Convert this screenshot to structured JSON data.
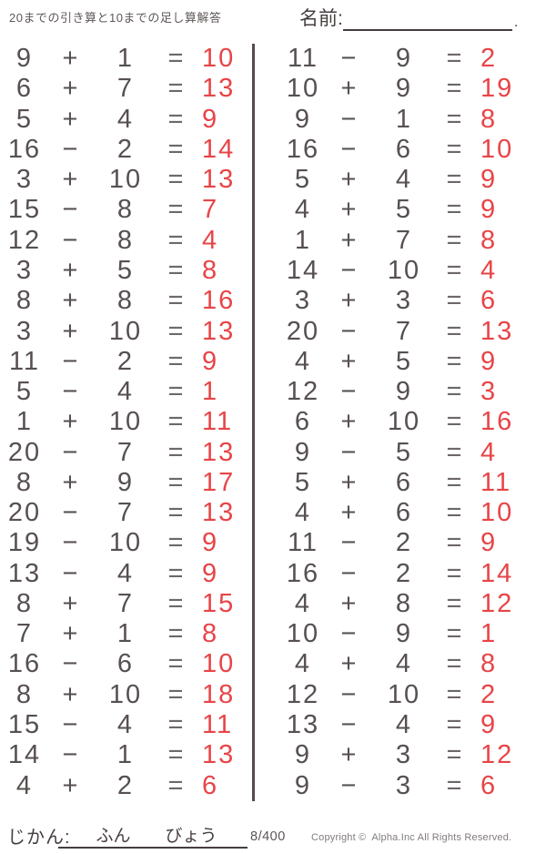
{
  "header": {
    "title": "20までの引き算と10までの足し算解答",
    "name_label": "名前:",
    "name_line_period": "."
  },
  "problems": {
    "equals_symbol": "=",
    "left": [
      {
        "a": "9",
        "op": "+",
        "b": "1",
        "ans": "10"
      },
      {
        "a": "6",
        "op": "+",
        "b": "7",
        "ans": "13"
      },
      {
        "a": "5",
        "op": "+",
        "b": "4",
        "ans": "9"
      },
      {
        "a": "16",
        "op": "−",
        "b": "2",
        "ans": "14"
      },
      {
        "a": "3",
        "op": "+",
        "b": "10",
        "ans": "13"
      },
      {
        "a": "15",
        "op": "−",
        "b": "8",
        "ans": "7"
      },
      {
        "a": "12",
        "op": "−",
        "b": "8",
        "ans": "4"
      },
      {
        "a": "3",
        "op": "+",
        "b": "5",
        "ans": "8"
      },
      {
        "a": "8",
        "op": "+",
        "b": "8",
        "ans": "16"
      },
      {
        "a": "3",
        "op": "+",
        "b": "10",
        "ans": "13"
      },
      {
        "a": "11",
        "op": "−",
        "b": "2",
        "ans": "9"
      },
      {
        "a": "5",
        "op": "−",
        "b": "4",
        "ans": "1"
      },
      {
        "a": "1",
        "op": "+",
        "b": "10",
        "ans": "11"
      },
      {
        "a": "20",
        "op": "−",
        "b": "7",
        "ans": "13"
      },
      {
        "a": "8",
        "op": "+",
        "b": "9",
        "ans": "17"
      },
      {
        "a": "20",
        "op": "−",
        "b": "7",
        "ans": "13"
      },
      {
        "a": "19",
        "op": "−",
        "b": "10",
        "ans": "9"
      },
      {
        "a": "13",
        "op": "−",
        "b": "4",
        "ans": "9"
      },
      {
        "a": "8",
        "op": "+",
        "b": "7",
        "ans": "15"
      },
      {
        "a": "7",
        "op": "+",
        "b": "1",
        "ans": "8"
      },
      {
        "a": "16",
        "op": "−",
        "b": "6",
        "ans": "10"
      },
      {
        "a": "8",
        "op": "+",
        "b": "10",
        "ans": "18"
      },
      {
        "a": "15",
        "op": "−",
        "b": "4",
        "ans": "11"
      },
      {
        "a": "14",
        "op": "−",
        "b": "1",
        "ans": "13"
      },
      {
        "a": "4",
        "op": "+",
        "b": "2",
        "ans": "6"
      }
    ],
    "right": [
      {
        "a": "11",
        "op": "−",
        "b": "9",
        "ans": "2"
      },
      {
        "a": "10",
        "op": "+",
        "b": "9",
        "ans": "19"
      },
      {
        "a": "9",
        "op": "−",
        "b": "1",
        "ans": "8"
      },
      {
        "a": "16",
        "op": "−",
        "b": "6",
        "ans": "10"
      },
      {
        "a": "5",
        "op": "+",
        "b": "4",
        "ans": "9"
      },
      {
        "a": "4",
        "op": "+",
        "b": "5",
        "ans": "9"
      },
      {
        "a": "1",
        "op": "+",
        "b": "7",
        "ans": "8"
      },
      {
        "a": "14",
        "op": "−",
        "b": "10",
        "ans": "4"
      },
      {
        "a": "3",
        "op": "+",
        "b": "3",
        "ans": "6"
      },
      {
        "a": "20",
        "op": "−",
        "b": "7",
        "ans": "13"
      },
      {
        "a": "4",
        "op": "+",
        "b": "5",
        "ans": "9"
      },
      {
        "a": "12",
        "op": "−",
        "b": "9",
        "ans": "3"
      },
      {
        "a": "6",
        "op": "+",
        "b": "10",
        "ans": "16"
      },
      {
        "a": "9",
        "op": "−",
        "b": "5",
        "ans": "4"
      },
      {
        "a": "5",
        "op": "+",
        "b": "6",
        "ans": "11"
      },
      {
        "a": "4",
        "op": "+",
        "b": "6",
        "ans": "10"
      },
      {
        "a": "11",
        "op": "−",
        "b": "2",
        "ans": "9"
      },
      {
        "a": "16",
        "op": "−",
        "b": "2",
        "ans": "14"
      },
      {
        "a": "4",
        "op": "+",
        "b": "8",
        "ans": "12"
      },
      {
        "a": "10",
        "op": "−",
        "b": "9",
        "ans": "1"
      },
      {
        "a": "4",
        "op": "+",
        "b": "4",
        "ans": "8"
      },
      {
        "a": "12",
        "op": "−",
        "b": "10",
        "ans": "2"
      },
      {
        "a": "13",
        "op": "−",
        "b": "4",
        "ans": "9"
      },
      {
        "a": "9",
        "op": "+",
        "b": "3",
        "ans": "12"
      },
      {
        "a": "9",
        "op": "−",
        "b": "3",
        "ans": "6"
      }
    ]
  },
  "footer": {
    "time_label": "じかん:",
    "minutes_label": "ふん",
    "seconds_label": "びょう",
    "page_number": "8/400",
    "copyright": "Copyright ©  Alpha.Inc All Rights Reserved."
  },
  "colors": {
    "answer_red": "#e84447",
    "ink": "#575050",
    "divider": "#574b4b",
    "underline": "#453d3d"
  }
}
